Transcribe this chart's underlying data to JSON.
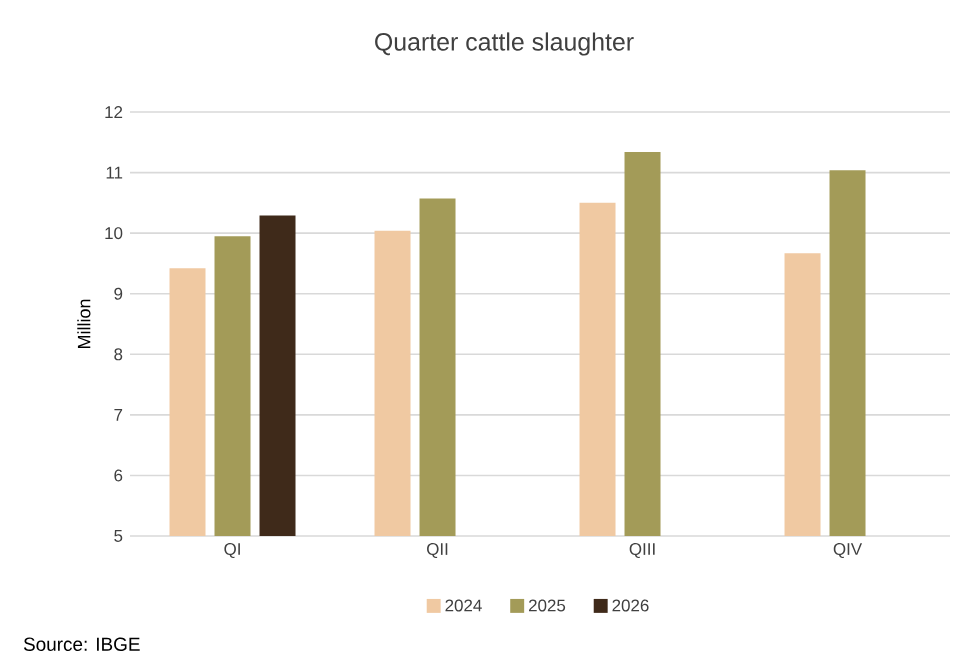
{
  "chart_data": {
    "type": "bar",
    "title": "Quarter cattle slaughter",
    "ylabel": "Million",
    "categories": [
      "QI",
      "QII",
      "QIII",
      "QIV"
    ],
    "series": [
      {
        "name": "2024",
        "color": "#f0c9a2",
        "values": [
          9.42,
          10.04,
          10.5,
          9.67
        ]
      },
      {
        "name": "2025",
        "color": "#a39b58",
        "values": [
          9.95,
          10.57,
          11.34,
          11.04
        ]
      },
      {
        "name": "2026",
        "color": "#3f2a1a",
        "values": [
          10.29,
          null,
          null,
          null
        ]
      }
    ],
    "ylim": [
      5,
      12
    ],
    "yticks": [
      5,
      6,
      7,
      8,
      9,
      10,
      11,
      12
    ],
    "grid": "y",
    "legend": "bottom",
    "annotations": [
      "Source: IBGE"
    ]
  }
}
